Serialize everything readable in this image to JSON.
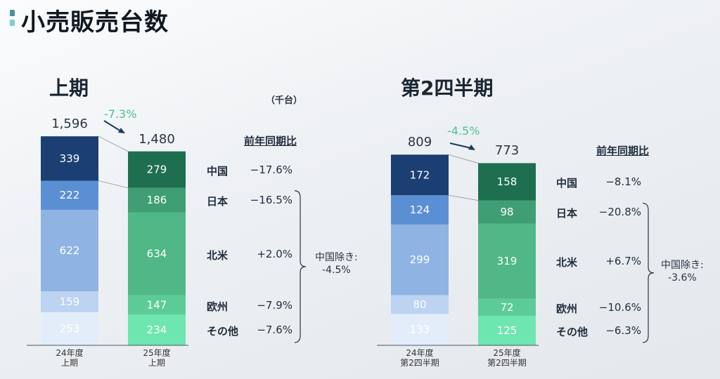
{
  "page_title": "小売販売台数",
  "unit": "（千台）",
  "colors": {
    "blue": [
      "#1b3f73",
      "#5b8fd4",
      "#8fb3e2",
      "#bcd3f1",
      "#e3edf9"
    ],
    "green": [
      "#1d6f50",
      "#3f9e73",
      "#4fb886",
      "#5ccc96",
      "#6ee6b0"
    ],
    "change": "#4fbf93"
  },
  "chart_data": [
    {
      "type": "bar",
      "stacked": true,
      "title": "上期",
      "categories": [
        "24年度\n上期",
        "25年度\n上期"
      ],
      "category_lines": [
        [
          "24年度",
          "上期"
        ],
        [
          "25年度",
          "上期"
        ]
      ],
      "segments_order": [
        "中国",
        "日本",
        "北米",
        "欧州",
        "その他"
      ],
      "series": [
        {
          "name": "中国",
          "values": [
            339,
            279
          ]
        },
        {
          "name": "日本",
          "values": [
            222,
            186
          ]
        },
        {
          "name": "北米",
          "values": [
            622,
            634
          ]
        },
        {
          "name": "欧州",
          "values": [
            159,
            147
          ]
        },
        {
          "name": "その他",
          "values": [
            253,
            234
          ]
        }
      ],
      "totals": [
        "1,596",
        "1,480"
      ],
      "total_change": "-7.3%",
      "yoy_header": "前年同期比",
      "yoy": [
        {
          "region": "中国",
          "value": "−17.6%"
        },
        {
          "region": "日本",
          "value": "−16.5%"
        },
        {
          "region": "北米",
          "value": "+2.0%"
        },
        {
          "region": "欧州",
          "value": "−7.9%"
        },
        {
          "region": "その他",
          "value": "−7.6%"
        }
      ],
      "excluding_china": {
        "label": "中国除き:",
        "value": "-4.5%"
      }
    },
    {
      "type": "bar",
      "stacked": true,
      "title": "第2四半期",
      "categories": [
        "24年度\n第2四半期",
        "25年度\n第2四半期"
      ],
      "category_lines": [
        [
          "24年度",
          "第2四半期"
        ],
        [
          "25年度",
          "第2四半期"
        ]
      ],
      "segments_order": [
        "中国",
        "日本",
        "北米",
        "欧州",
        "その他"
      ],
      "series": [
        {
          "name": "中国",
          "values": [
            172,
            158
          ]
        },
        {
          "name": "日本",
          "values": [
            124,
            98
          ]
        },
        {
          "name": "北米",
          "values": [
            299,
            319
          ]
        },
        {
          "name": "欧州",
          "values": [
            80,
            72
          ]
        },
        {
          "name": "その他",
          "values": [
            133,
            125
          ]
        }
      ],
      "totals": [
        "809",
        "773"
      ],
      "total_change": "-4.5%",
      "yoy_header": "前年同期比",
      "yoy": [
        {
          "region": "中国",
          "value": "−8.1%"
        },
        {
          "region": "日本",
          "value": "−20.8%"
        },
        {
          "region": "北米",
          "value": "+6.7%"
        },
        {
          "region": "欧州",
          "value": "−10.6%"
        },
        {
          "region": "その他",
          "value": "−6.3%"
        }
      ],
      "excluding_china": {
        "label": "中国除き:",
        "value": "-3.6%"
      }
    }
  ]
}
